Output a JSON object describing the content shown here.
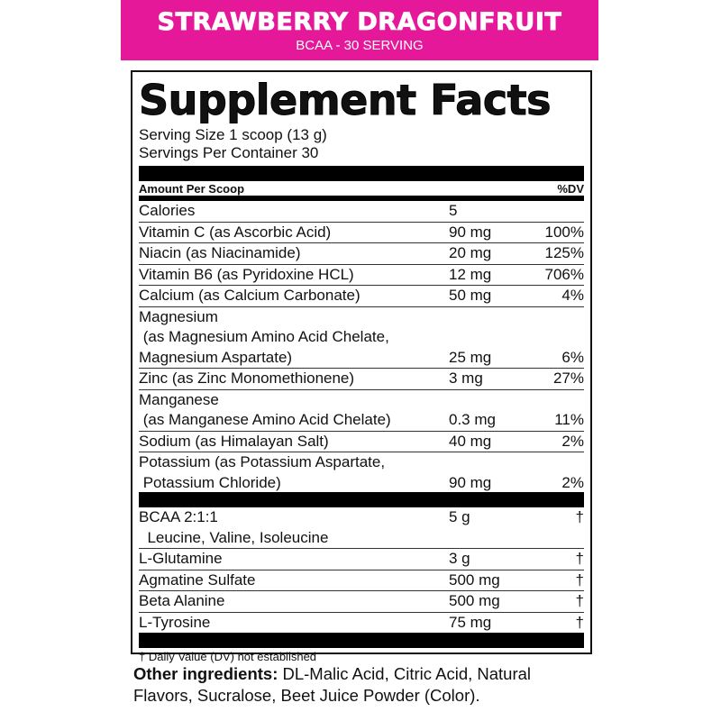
{
  "banner": {
    "flavor": "STRAWBERRY DRAGONFRUIT",
    "subtitle": "BCAA - 30 SERVING",
    "color": "#e5189a"
  },
  "facts": {
    "title": "Supplement Facts",
    "serving_size": "Serving Size 1 scoop (13 g)",
    "servings_per_container": "Servings Per Container 30",
    "header_amount": "Amount Per Scoop",
    "header_dv": "%DV",
    "nutrients": [
      {
        "name": "Calories",
        "amount": "5",
        "dv": ""
      },
      {
        "name": "Vitamin C (as Ascorbic Acid)",
        "amount": "90 mg",
        "dv": "100%"
      },
      {
        "name": "Niacin (as Niacinamide)",
        "amount": "20 mg",
        "dv": "125%"
      },
      {
        "name": "Vitamin B6 (as Pyridoxine HCL)",
        "amount": "12 mg",
        "dv": "706%"
      },
      {
        "name": "Calcium (as Calcium Carbonate)",
        "amount": "50 mg",
        "dv": "4%"
      },
      {
        "name": "Magnesium\n (as Magnesium Amino Acid Chelate,\nMagnesium Aspartate)",
        "amount": "25 mg",
        "dv": "6%"
      },
      {
        "name": "Zinc (as Zinc Monomethionene)",
        "amount": "3 mg",
        "dv": "27%"
      },
      {
        "name": "Manganese\n (as Manganese Amino Acid Chelate)",
        "amount": "0.3 mg",
        "dv": "11%"
      },
      {
        "name": "Sodium (as Himalayan Salt)",
        "amount": "40 mg",
        "dv": "2%"
      },
      {
        "name": "Potassium (as Potassium Aspartate,\n Potassium Chloride)",
        "amount": "90 mg",
        "dv": "2%"
      }
    ],
    "blend": [
      {
        "name": "BCAA 2:1:1\n  Leucine, Valine, Isoleucine",
        "amount": "5 g",
        "dv": "†"
      },
      {
        "name": "L-Glutamine",
        "amount": "3 g",
        "dv": "†"
      },
      {
        "name": "Agmatine Sulfate",
        "amount": "500 mg",
        "dv": "†"
      },
      {
        "name": "Beta Alanine",
        "amount": "500 mg",
        "dv": "†"
      },
      {
        "name": "L-Tyrosine",
        "amount": "75 mg",
        "dv": "†"
      }
    ],
    "footnote": "† Daily Value (DV) not established"
  },
  "other_ingredients": {
    "label": "Other ingredients:",
    "text": " DL-Malic Acid, Citric Acid, Natural Flavors, Sucralose, Beet Juice Powder (Color)."
  }
}
